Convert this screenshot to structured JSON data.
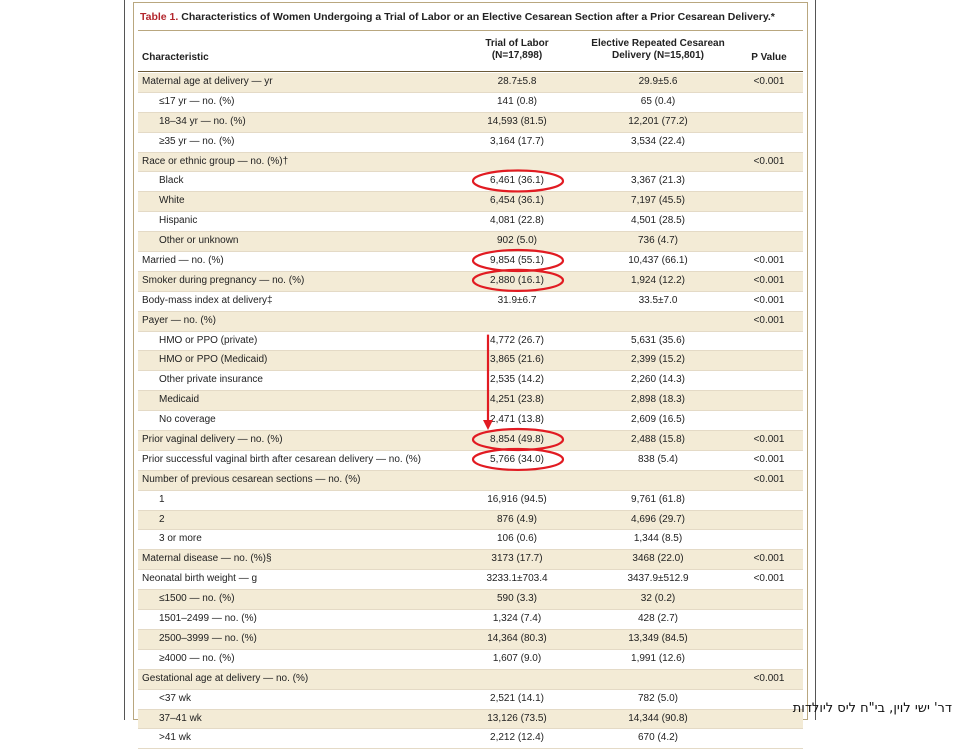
{
  "table": {
    "label": "Table 1.",
    "title": "Characteristics of Women Undergoing a Trial of Labor or an Elective Cesarean Section after a Prior Cesarean Delivery.*",
    "headers": {
      "characteristic": "Characteristic",
      "tol_line1": "Trial of Labor",
      "tol_line2": "(N=17,898)",
      "ercs_line1": "Elective Repeated Cesarean",
      "ercs_line2": "Delivery (N=15,801)",
      "p": "P Value"
    },
    "rows": [
      {
        "label": "Maternal age at delivery — yr",
        "tol": "28.7±5.8",
        "ercs": "29.9±5.6",
        "p": "<0.001",
        "indent": false
      },
      {
        "label": "≤17 yr — no. (%)",
        "tol": "141 (0.8)",
        "ercs": "65 (0.4)",
        "p": "",
        "indent": true
      },
      {
        "label": "18–34 yr — no. (%)",
        "tol": "14,593 (81.5)",
        "ercs": "12,201 (77.2)",
        "p": "",
        "indent": true
      },
      {
        "label": "≥35 yr — no. (%)",
        "tol": "3,164 (17.7)",
        "ercs": "3,534 (22.4)",
        "p": "",
        "indent": true
      },
      {
        "label": "Race or ethnic group — no. (%)†",
        "tol": "",
        "ercs": "",
        "p": "<0.001",
        "indent": false
      },
      {
        "label": "Black",
        "tol": "6,461 (36.1)",
        "ercs": "3,367 (21.3)",
        "p": "",
        "indent": true
      },
      {
        "label": "White",
        "tol": "6,454 (36.1)",
        "ercs": "7,197 (45.5)",
        "p": "",
        "indent": true
      },
      {
        "label": "Hispanic",
        "tol": "4,081 (22.8)",
        "ercs": "4,501 (28.5)",
        "p": "",
        "indent": true
      },
      {
        "label": "Other or unknown",
        "tol": "902 (5.0)",
        "ercs": "736 (4.7)",
        "p": "",
        "indent": true
      },
      {
        "label": "Married — no. (%)",
        "tol": "9,854 (55.1)",
        "ercs": "10,437 (66.1)",
        "p": "<0.001",
        "indent": false
      },
      {
        "label": "Smoker during pregnancy — no. (%)",
        "tol": "2,880 (16.1)",
        "ercs": "1,924 (12.2)",
        "p": "<0.001",
        "indent": false
      },
      {
        "label": "Body-mass index at delivery‡",
        "tol": "31.9±6.7",
        "ercs": "33.5±7.0",
        "p": "<0.001",
        "indent": false
      },
      {
        "label": "Payer — no. (%)",
        "tol": "",
        "ercs": "",
        "p": "<0.001",
        "indent": false
      },
      {
        "label": "HMO or PPO (private)",
        "tol": "4,772 (26.7)",
        "ercs": "5,631 (35.6)",
        "p": "",
        "indent": true
      },
      {
        "label": "HMO or PPO (Medicaid)",
        "tol": "3,865 (21.6)",
        "ercs": "2,399 (15.2)",
        "p": "",
        "indent": true
      },
      {
        "label": "Other private insurance",
        "tol": "2,535 (14.2)",
        "ercs": "2,260 (14.3)",
        "p": "",
        "indent": true
      },
      {
        "label": "Medicaid",
        "tol": "4,251 (23.8)",
        "ercs": "2,898 (18.3)",
        "p": "",
        "indent": true
      },
      {
        "label": "No coverage",
        "tol": "2,471 (13.8)",
        "ercs": "2,609 (16.5)",
        "p": "",
        "indent": true
      },
      {
        "label": "Prior vaginal delivery — no. (%)",
        "tol": "8,854 (49.8)",
        "ercs": "2,488 (15.8)",
        "p": "<0.001",
        "indent": false
      },
      {
        "label": "Prior successful vaginal birth after cesarean delivery — no. (%)",
        "tol": "5,766 (34.0)",
        "ercs": "838 (5.4)",
        "p": "<0.001",
        "indent": false
      },
      {
        "label": "Number of previous cesarean sections — no. (%)",
        "tol": "",
        "ercs": "",
        "p": "<0.001",
        "indent": false
      },
      {
        "label": "1",
        "tol": "16,916 (94.5)",
        "ercs": "9,761 (61.8)",
        "p": "",
        "indent": true
      },
      {
        "label": "2",
        "tol": "876 (4.9)",
        "ercs": "4,696 (29.7)",
        "p": "",
        "indent": true
      },
      {
        "label": "3 or more",
        "tol": "106 (0.6)",
        "ercs": "1,344 (8.5)",
        "p": "",
        "indent": true
      },
      {
        "label": "Maternal disease — no. (%)§",
        "tol": "3173 (17.7)",
        "ercs": "3468 (22.0)",
        "p": "<0.001",
        "indent": false
      },
      {
        "label": "Neonatal birth weight — g",
        "tol": "3233.1±703.4",
        "ercs": "3437.9±512.9",
        "p": "<0.001",
        "indent": false
      },
      {
        "label": "≤1500 — no. (%)",
        "tol": "590 (3.3)",
        "ercs": "32 (0.2)",
        "p": "",
        "indent": true
      },
      {
        "label": "1501–2499 — no. (%)",
        "tol": "1,324 (7.4)",
        "ercs": "428 (2.7)",
        "p": "",
        "indent": true
      },
      {
        "label": "2500–3999 — no. (%)",
        "tol": "14,364 (80.3)",
        "ercs": "13,349 (84.5)",
        "p": "",
        "indent": true
      },
      {
        "label": "≥4000 — no. (%)",
        "tol": "1,607 (9.0)",
        "ercs": "1,991 (12.6)",
        "p": "",
        "indent": true
      },
      {
        "label": "Gestational age at delivery — no. (%)",
        "tol": "",
        "ercs": "",
        "p": "<0.001",
        "indent": false
      },
      {
        "label": "<37 wk",
        "tol": "2,521 (14.1)",
        "ercs": "782 (5.0)",
        "p": "",
        "indent": true
      },
      {
        "label": "37–41 wk",
        "tol": "13,126 (73.5)",
        "ercs": "14,344 (90.8)",
        "p": "",
        "indent": true
      },
      {
        "label": ">41 wk",
        "tol": "2,212 (12.4)",
        "ercs": "670 (4.2)",
        "p": "",
        "indent": true
      }
    ]
  },
  "annotations": {
    "color": "#e11b22",
    "circled_rows": [
      5,
      9,
      10,
      18,
      19
    ],
    "arrow_from_row": 13,
    "arrow_to_row": 18
  },
  "footer": {
    "credit": "דר' ישי לוין, בי\"ח ליס ליולדות"
  }
}
